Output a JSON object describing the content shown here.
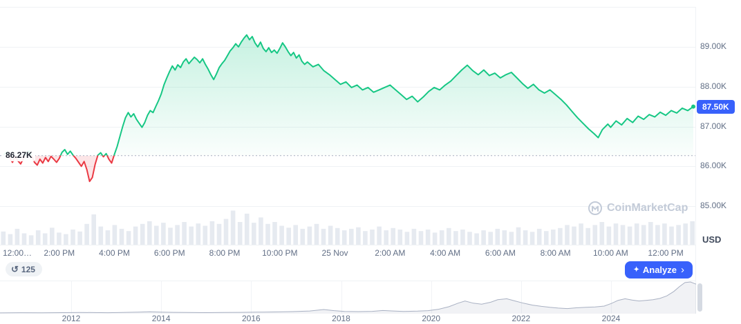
{
  "toolbar": {
    "history_count": "125",
    "analyze_label": "Analyze",
    "analyze_chevron": "›",
    "sparkle": "✦",
    "history_glyph": "↺"
  },
  "watermark": {
    "text": "CoinMarketCap"
  },
  "colors": {
    "up": "#16c784",
    "down": "#ea3943",
    "accent_blue": "#3861fb",
    "axis_text": "#616e85",
    "grid": "#eff2f5",
    "volume": "#e6eaf0",
    "baseline": "#a6aebf",
    "nav_line": "#a8b0c2",
    "nav_fill_alpha": 0.16,
    "scrollbar": "#d5dae2",
    "watermark": "#c3cbd8"
  },
  "chart_data": {
    "type": "area",
    "title": "",
    "y_axis": {
      "unit": "USD",
      "ticks": [
        {
          "label": "89.00K",
          "value": 89.0
        },
        {
          "label": "88.00K",
          "value": 88.0
        },
        {
          "label": "87.00K",
          "value": 87.0
        },
        {
          "label": "86.00K",
          "value": 86.0
        },
        {
          "label": "85.00K",
          "value": 85.0
        }
      ],
      "current": {
        "label": "87.50K",
        "value": 87.5
      },
      "baseline": {
        "label": "86.27K",
        "value": 86.27
      },
      "ylim": [
        84.0,
        90.0
      ],
      "grid_values": [
        90,
        89,
        88,
        87,
        86,
        85
      ]
    },
    "x_axis": {
      "unit": "hours since 12:00 PM",
      "ticks": [
        {
          "label": "12:00…",
          "hour": 0
        },
        {
          "label": "2:00 PM",
          "hour": 2
        },
        {
          "label": "4:00 PM",
          "hour": 4
        },
        {
          "label": "6:00 PM",
          "hour": 6
        },
        {
          "label": "8:00 PM",
          "hour": 8
        },
        {
          "label": "10:00 PM",
          "hour": 10
        },
        {
          "label": "25 Nov",
          "hour": 12
        },
        {
          "label": "2:00 AM",
          "hour": 14
        },
        {
          "label": "4:00 AM",
          "hour": 16
        },
        {
          "label": "6:00 AM",
          "hour": 18
        },
        {
          "label": "8:00 AM",
          "hour": 20
        },
        {
          "label": "10:00 AM",
          "hour": 22
        },
        {
          "label": "12:00 PM",
          "hour": 24
        }
      ]
    },
    "series": [
      {
        "name": "Price",
        "points": [
          [
            0.0,
            86.3
          ],
          [
            0.1,
            86.36
          ],
          [
            0.2,
            86.22
          ],
          [
            0.3,
            86.1
          ],
          [
            0.4,
            86.24
          ],
          [
            0.5,
            86.14
          ],
          [
            0.6,
            86.06
          ],
          [
            0.7,
            86.2
          ],
          [
            0.8,
            86.32
          ],
          [
            0.9,
            86.38
          ],
          [
            1.0,
            86.26
          ],
          [
            1.1,
            86.1
          ],
          [
            1.2,
            86.03
          ],
          [
            1.3,
            86.18
          ],
          [
            1.4,
            86.08
          ],
          [
            1.5,
            86.22
          ],
          [
            1.6,
            86.12
          ],
          [
            1.7,
            86.25
          ],
          [
            1.8,
            86.18
          ],
          [
            1.9,
            86.1
          ],
          [
            2.0,
            86.2
          ],
          [
            2.1,
            86.35
          ],
          [
            2.2,
            86.42
          ],
          [
            2.3,
            86.3
          ],
          [
            2.4,
            86.38
          ],
          [
            2.5,
            86.28
          ],
          [
            2.6,
            86.2
          ],
          [
            2.7,
            86.1
          ],
          [
            2.8,
            86.0
          ],
          [
            2.9,
            86.12
          ],
          [
            3.0,
            85.92
          ],
          [
            3.1,
            85.62
          ],
          [
            3.2,
            85.72
          ],
          [
            3.3,
            86.05
          ],
          [
            3.4,
            86.28
          ],
          [
            3.5,
            86.34
          ],
          [
            3.6,
            86.24
          ],
          [
            3.7,
            86.32
          ],
          [
            3.8,
            86.18
          ],
          [
            3.9,
            86.08
          ],
          [
            4.0,
            86.3
          ],
          [
            4.1,
            86.5
          ],
          [
            4.2,
            86.75
          ],
          [
            4.3,
            87.0
          ],
          [
            4.4,
            87.22
          ],
          [
            4.5,
            87.35
          ],
          [
            4.6,
            87.24
          ],
          [
            4.7,
            87.32
          ],
          [
            4.8,
            87.18
          ],
          [
            4.9,
            87.08
          ],
          [
            5.0,
            86.98
          ],
          [
            5.1,
            87.1
          ],
          [
            5.2,
            87.28
          ],
          [
            5.3,
            87.4
          ],
          [
            5.4,
            87.35
          ],
          [
            5.5,
            87.5
          ],
          [
            5.6,
            87.65
          ],
          [
            5.7,
            87.82
          ],
          [
            5.8,
            88.05
          ],
          [
            5.9,
            88.22
          ],
          [
            6.0,
            88.38
          ],
          [
            6.1,
            88.52
          ],
          [
            6.2,
            88.42
          ],
          [
            6.3,
            88.55
          ],
          [
            6.4,
            88.48
          ],
          [
            6.5,
            88.62
          ],
          [
            6.6,
            88.7
          ],
          [
            6.7,
            88.58
          ],
          [
            6.8,
            88.66
          ],
          [
            6.9,
            88.74
          ],
          [
            7.0,
            88.68
          ],
          [
            7.1,
            88.6
          ],
          [
            7.2,
            88.7
          ],
          [
            7.3,
            88.56
          ],
          [
            7.4,
            88.44
          ],
          [
            7.5,
            88.3
          ],
          [
            7.6,
            88.18
          ],
          [
            7.7,
            88.32
          ],
          [
            7.8,
            88.48
          ],
          [
            7.9,
            88.58
          ],
          [
            8.0,
            88.66
          ],
          [
            8.1,
            88.78
          ],
          [
            8.2,
            88.9
          ],
          [
            8.3,
            88.98
          ],
          [
            8.4,
            89.08
          ],
          [
            8.5,
            89.0
          ],
          [
            8.6,
            89.12
          ],
          [
            8.7,
            89.22
          ],
          [
            8.8,
            89.3
          ],
          [
            8.9,
            89.18
          ],
          [
            9.0,
            89.26
          ],
          [
            9.1,
            89.1
          ],
          [
            9.2,
            89.0
          ],
          [
            9.3,
            89.12
          ],
          [
            9.4,
            88.96
          ],
          [
            9.5,
            88.88
          ],
          [
            9.6,
            88.98
          ],
          [
            9.7,
            88.86
          ],
          [
            9.8,
            88.92
          ],
          [
            9.9,
            88.84
          ],
          [
            10.0,
            88.96
          ],
          [
            10.1,
            89.1
          ],
          [
            10.2,
            89.0
          ],
          [
            10.3,
            88.88
          ],
          [
            10.4,
            88.78
          ],
          [
            10.5,
            88.86
          ],
          [
            10.6,
            88.72
          ],
          [
            10.7,
            88.8
          ],
          [
            10.8,
            88.64
          ],
          [
            10.9,
            88.56
          ],
          [
            11.0,
            88.62
          ],
          [
            11.2,
            88.5
          ],
          [
            11.4,
            88.56
          ],
          [
            11.6,
            88.4
          ],
          [
            11.8,
            88.3
          ],
          [
            12.0,
            88.18
          ],
          [
            12.2,
            88.06
          ],
          [
            12.4,
            88.12
          ],
          [
            12.6,
            87.98
          ],
          [
            12.8,
            88.04
          ],
          [
            13.0,
            87.92
          ],
          [
            13.2,
            87.98
          ],
          [
            13.4,
            87.86
          ],
          [
            13.6,
            87.92
          ],
          [
            13.8,
            87.98
          ],
          [
            14.0,
            88.04
          ],
          [
            14.2,
            87.92
          ],
          [
            14.4,
            87.8
          ],
          [
            14.6,
            87.68
          ],
          [
            14.8,
            87.76
          ],
          [
            15.0,
            87.62
          ],
          [
            15.2,
            87.74
          ],
          [
            15.4,
            87.88
          ],
          [
            15.6,
            87.98
          ],
          [
            15.8,
            87.92
          ],
          [
            16.0,
            88.04
          ],
          [
            16.2,
            88.14
          ],
          [
            16.4,
            88.28
          ],
          [
            16.6,
            88.42
          ],
          [
            16.8,
            88.54
          ],
          [
            17.0,
            88.4
          ],
          [
            17.2,
            88.3
          ],
          [
            17.4,
            88.42
          ],
          [
            17.6,
            88.28
          ],
          [
            17.8,
            88.34
          ],
          [
            18.0,
            88.22
          ],
          [
            18.2,
            88.3
          ],
          [
            18.4,
            88.36
          ],
          [
            18.6,
            88.22
          ],
          [
            18.8,
            88.08
          ],
          [
            19.0,
            87.96
          ],
          [
            19.2,
            88.06
          ],
          [
            19.4,
            87.92
          ],
          [
            19.6,
            87.84
          ],
          [
            19.8,
            87.92
          ],
          [
            20.0,
            87.8
          ],
          [
            20.2,
            87.68
          ],
          [
            20.4,
            87.54
          ],
          [
            20.6,
            87.38
          ],
          [
            20.8,
            87.22
          ],
          [
            21.0,
            87.08
          ],
          [
            21.2,
            86.94
          ],
          [
            21.4,
            86.82
          ],
          [
            21.55,
            86.72
          ],
          [
            21.7,
            86.92
          ],
          [
            21.9,
            87.06
          ],
          [
            22.0,
            86.98
          ],
          [
            22.2,
            87.14
          ],
          [
            22.4,
            87.04
          ],
          [
            22.6,
            87.2
          ],
          [
            22.8,
            87.1
          ],
          [
            23.0,
            87.26
          ],
          [
            23.2,
            87.18
          ],
          [
            23.4,
            87.3
          ],
          [
            23.6,
            87.24
          ],
          [
            23.8,
            87.36
          ],
          [
            24.0,
            87.28
          ],
          [
            24.2,
            87.4
          ],
          [
            24.4,
            87.34
          ],
          [
            24.6,
            87.46
          ],
          [
            24.8,
            87.4
          ],
          [
            25.0,
            87.5
          ]
        ]
      }
    ],
    "volume_bars": [
      0.35,
      0.28,
      0.42,
      0.3,
      0.25,
      0.38,
      0.3,
      0.45,
      0.32,
      0.28,
      0.4,
      0.35,
      0.55,
      0.8,
      0.48,
      0.38,
      0.52,
      0.42,
      0.36,
      0.48,
      0.55,
      0.62,
      0.5,
      0.58,
      0.45,
      0.52,
      0.6,
      0.48,
      0.56,
      0.5,
      0.62,
      0.55,
      0.68,
      0.9,
      0.6,
      0.82,
      0.58,
      0.72,
      0.55,
      0.6,
      0.5,
      0.45,
      0.52,
      0.42,
      0.48,
      0.55,
      0.42,
      0.5,
      0.44,
      0.38,
      0.42,
      0.46,
      0.36,
      0.4,
      0.48,
      0.38,
      0.44,
      0.4,
      0.34,
      0.42,
      0.36,
      0.4,
      0.32,
      0.38,
      0.44,
      0.36,
      0.4,
      0.34,
      0.3,
      0.38,
      0.34,
      0.42,
      0.38,
      0.34,
      0.46,
      0.38,
      0.34,
      0.42,
      0.36,
      0.4,
      0.44,
      0.52,
      0.48,
      0.56,
      0.44,
      0.52,
      0.6,
      0.48,
      0.56,
      0.52,
      0.48,
      0.56,
      0.52,
      0.6,
      0.52,
      0.56,
      0.48,
      0.52,
      0.56,
      0.62
    ],
    "navigator": {
      "year_ticks": [
        "2012",
        "2014",
        "2016",
        "2018",
        "2020",
        "2022",
        "2024"
      ],
      "points": [
        [
          0.0,
          0.025
        ],
        [
          0.03,
          0.03
        ],
        [
          0.06,
          0.026
        ],
        [
          0.09,
          0.032
        ],
        [
          0.115,
          0.04
        ],
        [
          0.135,
          0.034
        ],
        [
          0.155,
          0.03
        ],
        [
          0.175,
          0.036
        ],
        [
          0.2,
          0.048
        ],
        [
          0.215,
          0.06
        ],
        [
          0.23,
          0.05
        ],
        [
          0.25,
          0.042
        ],
        [
          0.27,
          0.036
        ],
        [
          0.295,
          0.032
        ],
        [
          0.32,
          0.036
        ],
        [
          0.345,
          0.042
        ],
        [
          0.37,
          0.048
        ],
        [
          0.395,
          0.055
        ],
        [
          0.42,
          0.065
        ],
        [
          0.445,
          0.085
        ],
        [
          0.465,
          0.13
        ],
        [
          0.48,
          0.095
        ],
        [
          0.495,
          0.07
        ],
        [
          0.515,
          0.065
        ],
        [
          0.535,
          0.075
        ],
        [
          0.55,
          0.1
        ],
        [
          0.565,
          0.085
        ],
        [
          0.58,
          0.072
        ],
        [
          0.6,
          0.08
        ],
        [
          0.615,
          0.095
        ],
        [
          0.63,
          0.14
        ],
        [
          0.645,
          0.22
        ],
        [
          0.658,
          0.33
        ],
        [
          0.668,
          0.4
        ],
        [
          0.68,
          0.33
        ],
        [
          0.692,
          0.3
        ],
        [
          0.705,
          0.36
        ],
        [
          0.715,
          0.44
        ],
        [
          0.728,
          0.47
        ],
        [
          0.74,
          0.4
        ],
        [
          0.752,
          0.33
        ],
        [
          0.765,
          0.27
        ],
        [
          0.778,
          0.23
        ],
        [
          0.79,
          0.2
        ],
        [
          0.802,
          0.175
        ],
        [
          0.815,
          0.16
        ],
        [
          0.828,
          0.185
        ],
        [
          0.842,
          0.2
        ],
        [
          0.855,
          0.21
        ],
        [
          0.868,
          0.24
        ],
        [
          0.878,
          0.32
        ],
        [
          0.888,
          0.42
        ],
        [
          0.898,
          0.47
        ],
        [
          0.908,
          0.43
        ],
        [
          0.918,
          0.4
        ],
        [
          0.928,
          0.42
        ],
        [
          0.938,
          0.44
        ],
        [
          0.948,
          0.48
        ],
        [
          0.958,
          0.56
        ],
        [
          0.968,
          0.7
        ],
        [
          0.976,
          0.85
        ],
        [
          0.984,
          0.98
        ],
        [
          0.992,
          1.0
        ],
        [
          1.0,
          0.93
        ]
      ]
    }
  }
}
